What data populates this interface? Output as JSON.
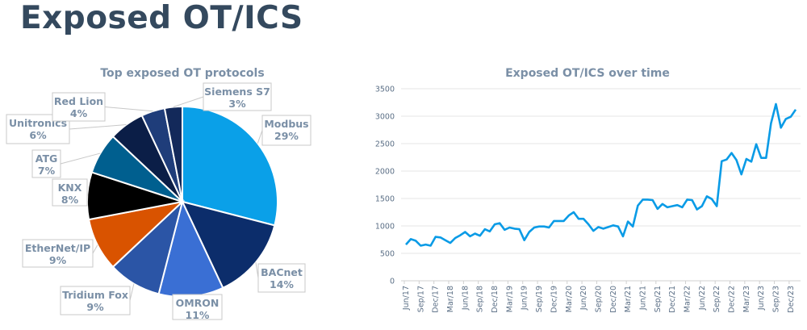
{
  "page_title": "Exposed OT/ICS",
  "colors": {
    "title": "#34495e",
    "label": "#7a8fa6",
    "line": "#0a9be6",
    "grid": "#e6e6e6"
  },
  "chart_data": [
    {
      "type": "pie",
      "title": "Top exposed OT protocols",
      "start": "12 o'clock, clockwise",
      "slices": [
        {
          "label": "Modbus",
          "value": 29,
          "display": "29%",
          "color": "#0aa0e8"
        },
        {
          "label": "BACnet",
          "value": 14,
          "display": "14%",
          "color": "#0c2d6b"
        },
        {
          "label": "OMRON",
          "value": 11,
          "display": "11%",
          "color": "#3a6fd4"
        },
        {
          "label": "Tridium Fox",
          "value": 9,
          "display": "9%",
          "color": "#2b55a6"
        },
        {
          "label": "EtherNet/IP",
          "value": 9,
          "display": "9%",
          "color": "#d95300"
        },
        {
          "label": "KNX",
          "value": 8,
          "display": "8%",
          "color": "#000000"
        },
        {
          "label": "ATG",
          "value": 7,
          "display": "7%",
          "color": "#005f8f"
        },
        {
          "label": "Unitronics",
          "value": 6,
          "display": "6%",
          "color": "#0b1e47"
        },
        {
          "label": "Red Lion",
          "value": 4,
          "display": "4%",
          "color": "#1f3d7a"
        },
        {
          "label": "Siemens S7",
          "value": 3,
          "display": "3%",
          "color": "#13295a"
        }
      ]
    },
    {
      "type": "line",
      "title": "Exposed OT/ICS over time",
      "xlabel": "",
      "ylabel": "",
      "ylim": [
        0,
        3500
      ],
      "yticks": [
        0,
        500,
        1000,
        1500,
        2000,
        2500,
        3000,
        3500
      ],
      "grid": true,
      "x_start": "Jun/17",
      "x_step": "monthly",
      "xtick_labels": [
        "Jun/17",
        "Sep/17",
        "Dec/17",
        "Mar/18",
        "Jun/18",
        "Sep/18",
        "Dec/18",
        "Mar/19",
        "Jun/19",
        "Sep/19",
        "Dec/19",
        "Mar/20",
        "Jun/20",
        "Sep/20",
        "Dec/20",
        "Mar/21",
        "Jun/21",
        "Sep/21",
        "Dec/21",
        "Mar/22",
        "Jun/22",
        "Sep/22",
        "Dec/22",
        "Mar/23",
        "Jun/23",
        "Sep/23",
        "Dec/23"
      ],
      "series": [
        {
          "name": "Exposed OT/ICS",
          "values": [
            660,
            760,
            730,
            640,
            660,
            640,
            800,
            790,
            740,
            690,
            780,
            830,
            890,
            810,
            860,
            820,
            940,
            900,
            1030,
            1050,
            930,
            970,
            950,
            940,
            740,
            890,
            970,
            990,
            990,
            970,
            1090,
            1090,
            1090,
            1190,
            1250,
            1130,
            1130,
            1030,
            910,
            980,
            950,
            980,
            1010,
            990,
            810,
            1080,
            990,
            1370,
            1480,
            1480,
            1470,
            1310,
            1400,
            1340,
            1360,
            1380,
            1340,
            1480,
            1470,
            1300,
            1360,
            1540,
            1490,
            1360,
            2180,
            2210,
            2330,
            2200,
            1940,
            2220,
            2170,
            2490,
            2240,
            2240,
            2870,
            3220,
            2790,
            2950,
            2990,
            3120
          ]
        }
      ]
    }
  ]
}
